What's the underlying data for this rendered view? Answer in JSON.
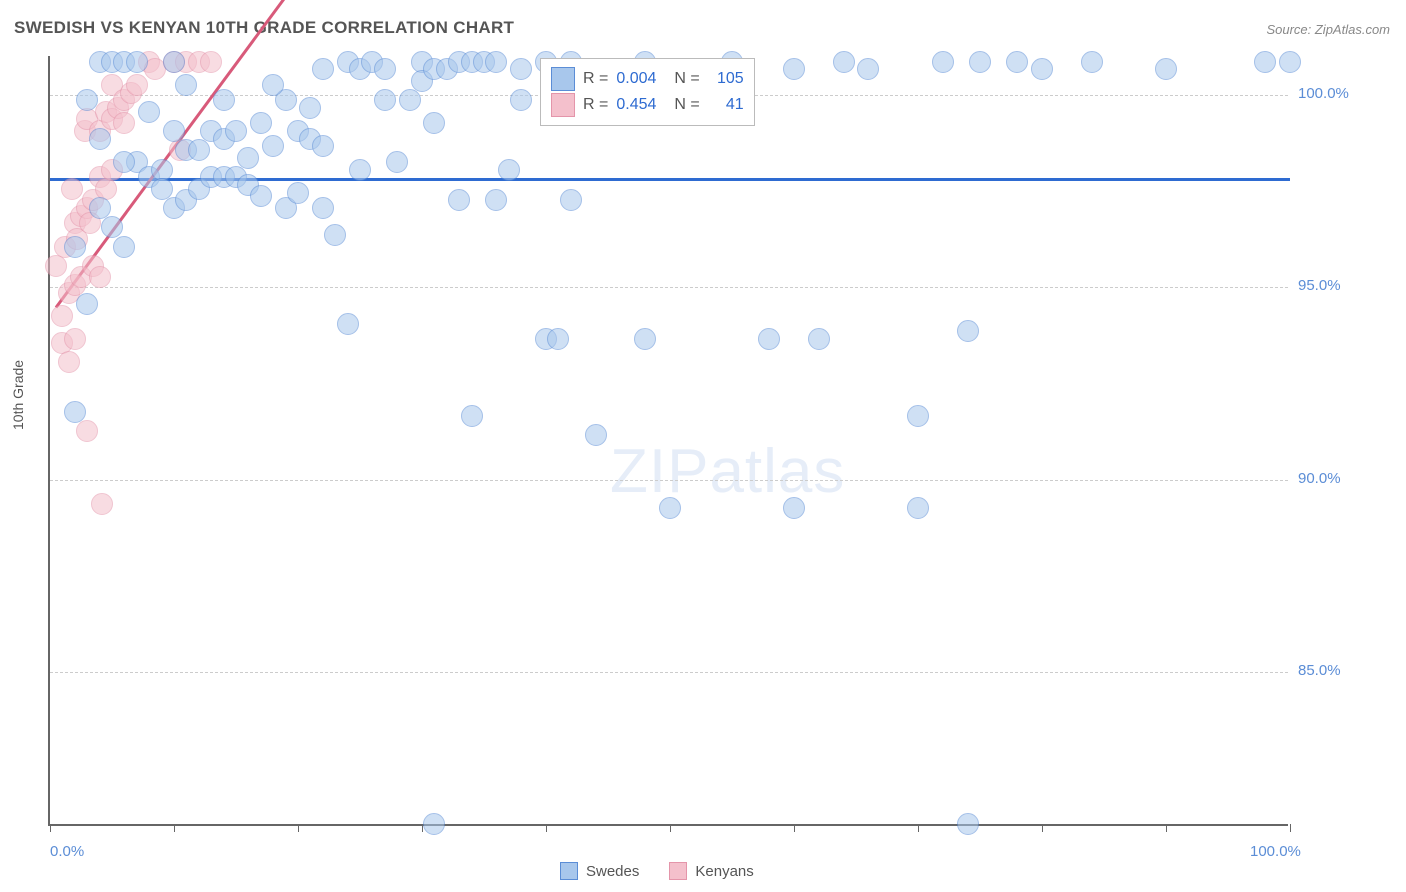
{
  "title": "SWEDISH VS KENYAN 10TH GRADE CORRELATION CHART",
  "source_label": "Source: ZipAtlas.com",
  "y_axis_label": "10th Grade",
  "watermark_bold": "ZIP",
  "watermark_light": "atlas",
  "chart": {
    "type": "scatter",
    "background_color": "#ffffff",
    "grid_color": "#cccccc",
    "axis_color": "#666666",
    "tick_label_color": "#5b8dd6",
    "xlim": [
      0,
      100
    ],
    "ylim": [
      81,
      101
    ],
    "y_ticks": [
      {
        "value": 100,
        "label": "100.0%"
      },
      {
        "value": 95,
        "label": "95.0%"
      },
      {
        "value": 90,
        "label": "90.0%"
      },
      {
        "value": 85,
        "label": "85.0%"
      }
    ],
    "x_ticks": [
      0,
      10,
      20,
      30,
      40,
      50,
      60,
      70,
      80,
      90,
      100
    ],
    "x_tick_labels": {
      "0": "0.0%",
      "100": "100.0%"
    },
    "marker_radius": 11,
    "marker_stroke_width": 1,
    "series": [
      {
        "name": "Swedes",
        "fill_color": "#a8c7ec",
        "stroke_color": "#5b8dd6",
        "fill_opacity": 0.55,
        "trend_line": {
          "color": "#2e6bd1",
          "width": 3,
          "y_value": 97.8
        },
        "stats": {
          "R": "0.004",
          "N": "105"
        },
        "points": [
          [
            2,
            91.7
          ],
          [
            2,
            96.0
          ],
          [
            3,
            99.8
          ],
          [
            4,
            100.8
          ],
          [
            5,
            100.8
          ],
          [
            6,
            100.8
          ],
          [
            7,
            100.8
          ],
          [
            7,
            98.2
          ],
          [
            8,
            97.8
          ],
          [
            9,
            98.0
          ],
          [
            9,
            97.5
          ],
          [
            10,
            99.0
          ],
          [
            10,
            97.0
          ],
          [
            11,
            98.5
          ],
          [
            11,
            97.2
          ],
          [
            12,
            97.5
          ],
          [
            12,
            98.5
          ],
          [
            13,
            99.0
          ],
          [
            13,
            97.8
          ],
          [
            14,
            98.8
          ],
          [
            14,
            97.8
          ],
          [
            15,
            99.0
          ],
          [
            15,
            97.8
          ],
          [
            16,
            98.3
          ],
          [
            16,
            97.6
          ],
          [
            17,
            99.2
          ],
          [
            17,
            97.3
          ],
          [
            18,
            98.6
          ],
          [
            19,
            99.8
          ],
          [
            19,
            97.0
          ],
          [
            20,
            99.0
          ],
          [
            20,
            97.4
          ],
          [
            21,
            98.8
          ],
          [
            21,
            99.6
          ],
          [
            22,
            97.0
          ],
          [
            22,
            98.6
          ],
          [
            23,
            96.3
          ],
          [
            24,
            100.8
          ],
          [
            25,
            100.6
          ],
          [
            25,
            98.0
          ],
          [
            26,
            100.8
          ],
          [
            27,
            99.8
          ],
          [
            27,
            100.6
          ],
          [
            28,
            98.2
          ],
          [
            29,
            99.8
          ],
          [
            30,
            100.8
          ],
          [
            30,
            100.3
          ],
          [
            31,
            100.6
          ],
          [
            31,
            99.2
          ],
          [
            31,
            81.0
          ],
          [
            32,
            100.6
          ],
          [
            33,
            100.8
          ],
          [
            33,
            97.2
          ],
          [
            34,
            100.8
          ],
          [
            34,
            91.6
          ],
          [
            35,
            100.8
          ],
          [
            36,
            100.8
          ],
          [
            36,
            97.2
          ],
          [
            37,
            98.0
          ],
          [
            38,
            100.6
          ],
          [
            38,
            99.8
          ],
          [
            40,
            93.6
          ],
          [
            40,
            100.8
          ],
          [
            41,
            93.6
          ],
          [
            42,
            100.8
          ],
          [
            42,
            97.2
          ],
          [
            43,
            100.6
          ],
          [
            44,
            91.1
          ],
          [
            48,
            93.6
          ],
          [
            48,
            100.8
          ],
          [
            46,
            100.4
          ],
          [
            50,
            100.6
          ],
          [
            50,
            89.2
          ],
          [
            55,
            100.8
          ],
          [
            58,
            93.6
          ],
          [
            60,
            100.6
          ],
          [
            60,
            89.2
          ],
          [
            62,
            93.6
          ],
          [
            64,
            100.8
          ],
          [
            66,
            100.6
          ],
          [
            70,
            91.6
          ],
          [
            70,
            89.2
          ],
          [
            72,
            100.8
          ],
          [
            74,
            93.8
          ],
          [
            75,
            100.8
          ],
          [
            78,
            100.8
          ],
          [
            80,
            100.6
          ],
          [
            74,
            81.0
          ],
          [
            84,
            100.8
          ],
          [
            90,
            100.6
          ],
          [
            98,
            100.8
          ],
          [
            14,
            99.8
          ],
          [
            10,
            100.8
          ],
          [
            100,
            100.8
          ],
          [
            8,
            99.5
          ],
          [
            4,
            97.0
          ],
          [
            6,
            96.0
          ],
          [
            3,
            94.5
          ],
          [
            5,
            96.5
          ],
          [
            24,
            94.0
          ],
          [
            4,
            98.8
          ],
          [
            6,
            98.2
          ],
          [
            11,
            100.2
          ],
          [
            18,
            100.2
          ],
          [
            22,
            100.6
          ]
        ]
      },
      {
        "name": "Kenyans",
        "fill_color": "#f4c0cc",
        "stroke_color": "#e495aa",
        "fill_opacity": 0.55,
        "trend_line": {
          "color": "#d85a7a",
          "width": 3,
          "x1": 0.5,
          "y1": 94.5,
          "x2": 20,
          "y2": 103.0
        },
        "stats": {
          "R": "0.454",
          "N": "41"
        },
        "points": [
          [
            0.5,
            95.5
          ],
          [
            1,
            93.5
          ],
          [
            1,
            94.2
          ],
          [
            1.2,
            96.0
          ],
          [
            1.5,
            93.0
          ],
          [
            1.5,
            94.8
          ],
          [
            1.8,
            97.5
          ],
          [
            2,
            93.6
          ],
          [
            2,
            95.0
          ],
          [
            2,
            96.6
          ],
          [
            2.2,
            96.2
          ],
          [
            2.5,
            96.8
          ],
          [
            2.5,
            95.2
          ],
          [
            2.8,
            99.0
          ],
          [
            3,
            91.2
          ],
          [
            3,
            97.0
          ],
          [
            3,
            99.3
          ],
          [
            3.2,
            96.6
          ],
          [
            3.5,
            97.2
          ],
          [
            3.5,
            95.5
          ],
          [
            4,
            97.8
          ],
          [
            4,
            99.0
          ],
          [
            4,
            95.2
          ],
          [
            4.2,
            89.3
          ],
          [
            4.5,
            99.5
          ],
          [
            4.5,
            97.5
          ],
          [
            5,
            98.0
          ],
          [
            5,
            99.3
          ],
          [
            5,
            100.2
          ],
          [
            5.5,
            99.6
          ],
          [
            6,
            99.8
          ],
          [
            6,
            99.2
          ],
          [
            6.5,
            100.0
          ],
          [
            7,
            100.2
          ],
          [
            8,
            100.8
          ],
          [
            8.5,
            100.6
          ],
          [
            10,
            100.8
          ],
          [
            10.5,
            98.5
          ],
          [
            11,
            100.8
          ],
          [
            12,
            100.8
          ],
          [
            13,
            100.8
          ]
        ]
      }
    ]
  },
  "stats_box": {
    "r_label": "R =",
    "n_label": "N ="
  },
  "bottom_legend": [
    {
      "label": "Swedes",
      "fill": "#a8c7ec",
      "stroke": "#5b8dd6"
    },
    {
      "label": "Kenyans",
      "fill": "#f4c0cc",
      "stroke": "#e495aa"
    }
  ]
}
